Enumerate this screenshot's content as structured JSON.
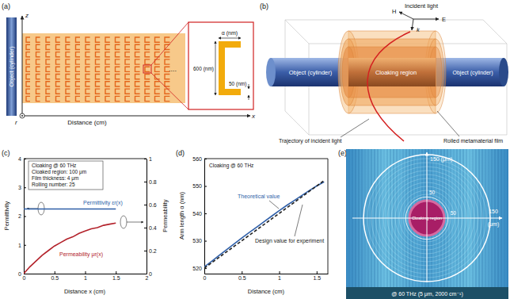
{
  "panel_labels": [
    "(a)",
    "(b)",
    "(c)",
    "(d)",
    "(e)"
  ],
  "panel_a": {
    "object_label": "Object (cylinder)",
    "z_label": "z",
    "r_label": "r",
    "x_label": "x",
    "distance_label": "Distance (cm)",
    "ellipsis": "....",
    "inset": {
      "arm_label": "α (nm)",
      "height_label": "600 (nm)",
      "width_label": "50 (nm)"
    }
  },
  "panel_b": {
    "title": "Incident light",
    "field_labels": [
      "H",
      "k",
      "E"
    ],
    "object_labels": [
      "Object (cylinder)",
      "Object (cylinder)"
    ],
    "cloak_label": "Cloaking region",
    "trajectory_label": "Trajectory of incident light",
    "film_label": "Rolled metamaterial film"
  },
  "chart_data": [
    {
      "type": "line",
      "annotations": [
        "Cloaking @ 60 THz",
        "Cloaked region: 100 μm",
        "Film thickness: 4 μm",
        "Rolling number: 25"
      ],
      "x_label": "Distance x (cm)",
      "y_label": "Permittivity",
      "y2_label": "Permeability",
      "x": [
        0,
        0.1,
        0.2,
        0.3,
        0.4,
        0.5,
        0.6,
        0.7,
        0.8,
        0.9,
        1.0,
        1.1,
        1.2,
        1.3,
        1.4,
        1.5
      ],
      "xlim": [
        0,
        2
      ],
      "xticks": [
        0,
        0.5,
        1,
        1.5,
        2
      ],
      "ylim": [
        0,
        4
      ],
      "yticks": [
        0,
        1,
        2,
        3,
        4
      ],
      "y2lim": [
        0,
        1
      ],
      "y2ticks": [
        0,
        0.2,
        0.4,
        0.6,
        0.8,
        1
      ],
      "series": [
        {
          "name": "Permittivity εr(x)",
          "color": "#2f5fa8",
          "line_style": "solid",
          "values": [
            2.25,
            2.25,
            2.25,
            2.25,
            2.25,
            2.25,
            2.25,
            2.25,
            2.25,
            2.25,
            2.25,
            2.25,
            2.25,
            2.25,
            2.25,
            2.25
          ]
        },
        {
          "name": "Permeability μr(x)",
          "color": "#b3222b",
          "line_style": "solid",
          "axis": "y2",
          "values": [
            0,
            0.06,
            0.11,
            0.16,
            0.2,
            0.24,
            0.27,
            0.3,
            0.32,
            0.35,
            0.37,
            0.39,
            0.4,
            0.42,
            0.43,
            0.44
          ]
        }
      ]
    },
    {
      "type": "line",
      "annotations": [
        "Cloaking @ 60 THz"
      ],
      "x_label": "Distance (cm)",
      "y_label": "Arm length α (nm)",
      "x": [
        0,
        0.1,
        0.2,
        0.3,
        0.4,
        0.5,
        0.6,
        0.7,
        0.8,
        0.9,
        1.0,
        1.1,
        1.2,
        1.3,
        1.4,
        1.5,
        1.6
      ],
      "xlim": [
        0,
        1.65
      ],
      "xticks": [
        0,
        0.5,
        1,
        1.5
      ],
      "ylim": [
        518,
        560
      ],
      "yticks": [
        520,
        530,
        540,
        550,
        560
      ],
      "series": [
        {
          "name": "Theoretical value",
          "color": "#2f5fa8",
          "line_style": "solid",
          "values": [
            520.5,
            522.5,
            524.7,
            526.8,
            528.9,
            531,
            533,
            535,
            537,
            539,
            541,
            542.9,
            544.7,
            546.5,
            548.3,
            550,
            551.5
          ]
        },
        {
          "name": "Design value for experiment",
          "color": "#222222",
          "line_style": "dashed",
          "values": [
            520,
            522,
            524,
            526,
            528,
            530,
            532,
            534,
            536,
            538,
            540,
            542,
            544,
            546,
            548,
            550,
            552
          ]
        }
      ]
    }
  ],
  "panel_e": {
    "cloak_label": "Cloaking region",
    "top_outer_label": "150 (μm)",
    "top_inner_label": "50",
    "right_outer_label": "150",
    "right_unit_label": "(μm)",
    "right_inner_label": "50",
    "caption": "@ 60 THz (5 μm, 2000 cm⁻¹)"
  }
}
